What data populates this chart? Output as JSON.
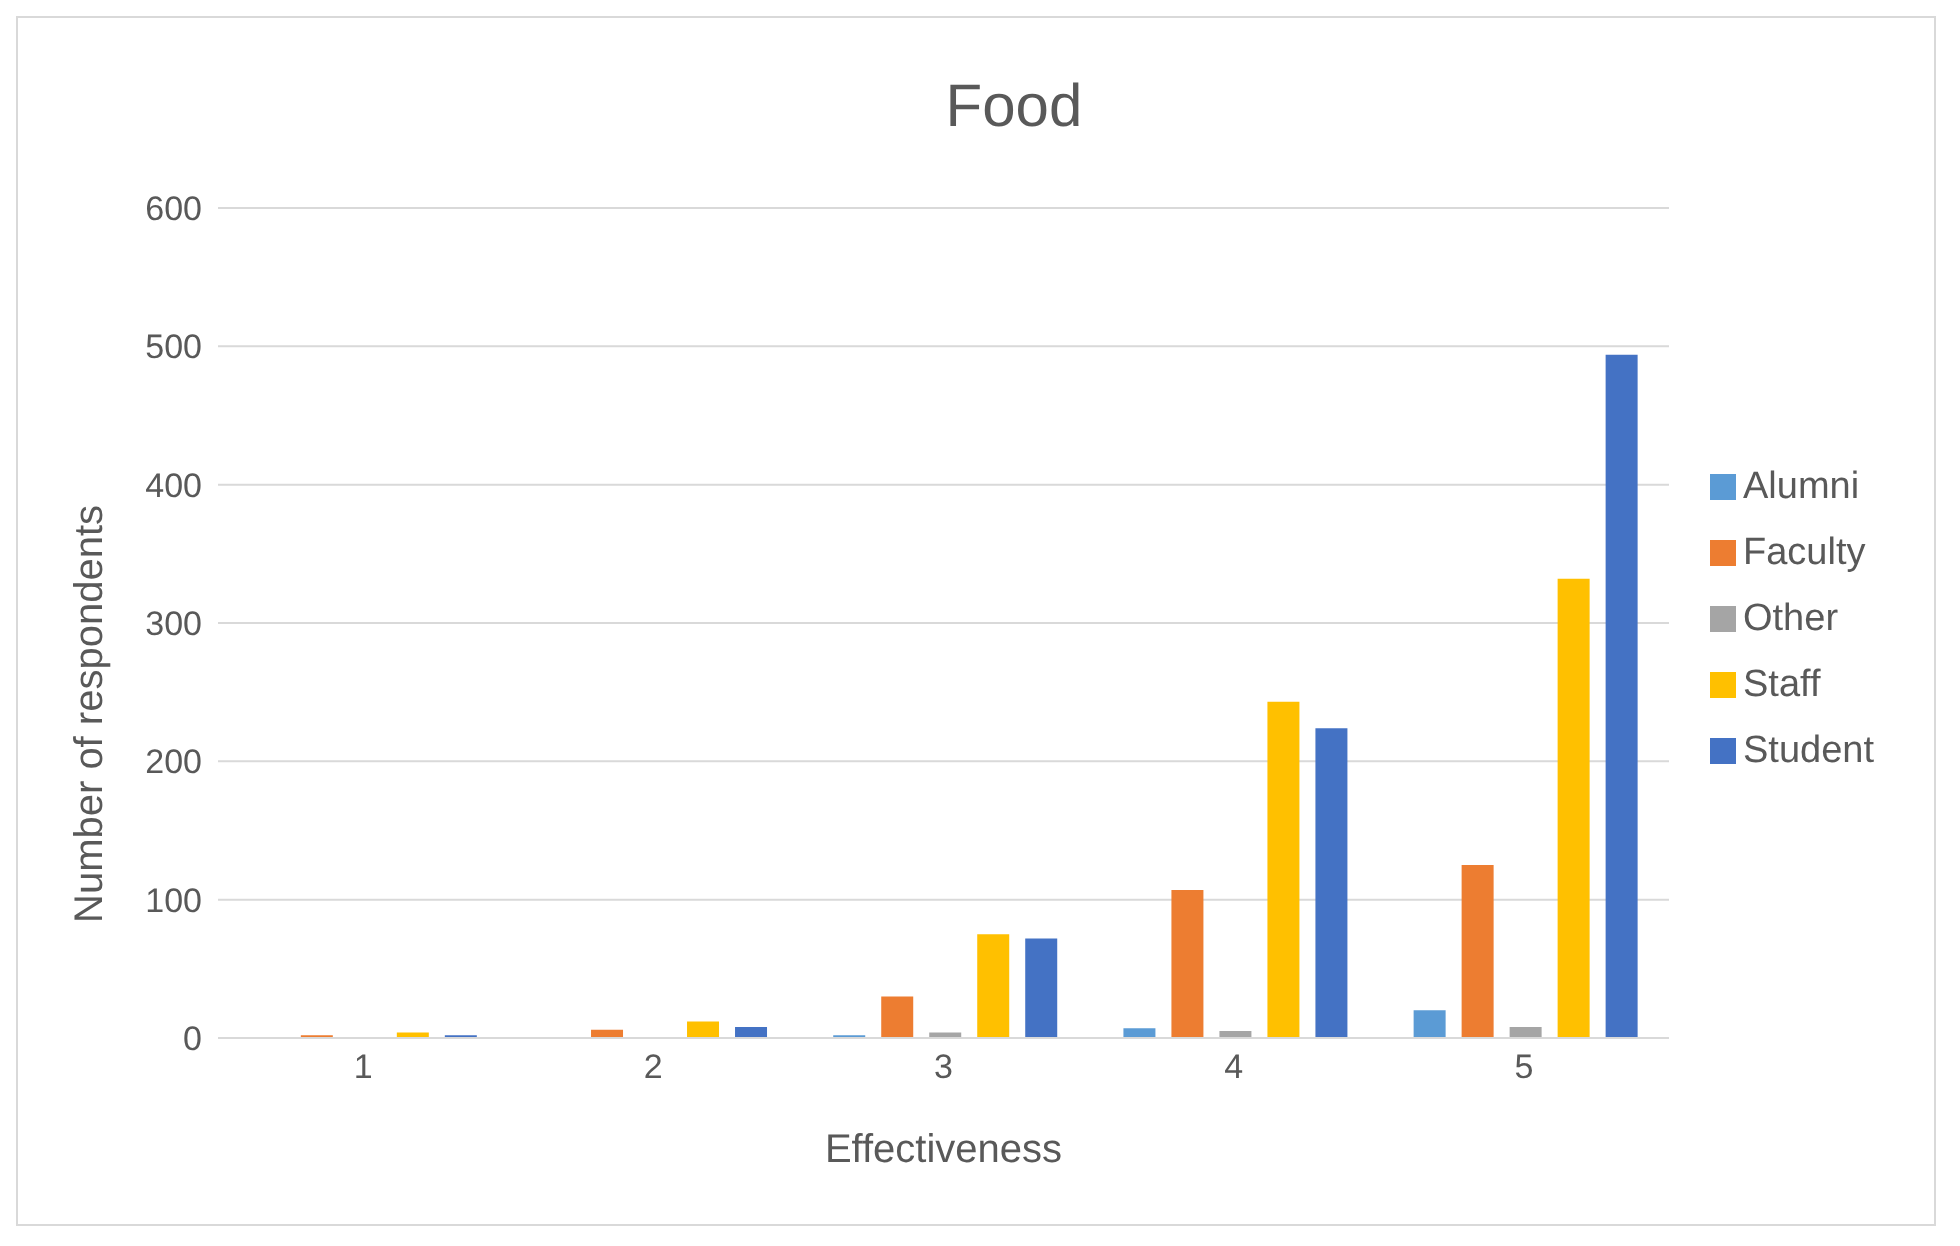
{
  "chart_data": {
    "type": "bar",
    "title": "Food",
    "xlabel": "Effectiveness",
    "ylabel": "Number of respondents",
    "categories": [
      "1",
      "2",
      "3",
      "4",
      "5"
    ],
    "series": [
      {
        "name": "Alumni",
        "color": "#5b9bd5",
        "values": [
          0,
          0,
          2,
          7,
          20
        ]
      },
      {
        "name": "Faculty",
        "color": "#ed7d31",
        "values": [
          2,
          6,
          30,
          107,
          125
        ]
      },
      {
        "name": "Other",
        "color": "#a5a5a5",
        "values": [
          0,
          0,
          4,
          5,
          8
        ]
      },
      {
        "name": "Staff",
        "color": "#ffc000",
        "values": [
          4,
          12,
          75,
          243,
          332
        ]
      },
      {
        "name": "Student",
        "color": "#4472c4",
        "values": [
          2,
          8,
          72,
          224,
          494
        ]
      }
    ],
    "ylim": [
      0,
      600
    ],
    "yticks": [
      0,
      100,
      200,
      300,
      400,
      500,
      600
    ],
    "grid": "y",
    "legend": "right"
  }
}
